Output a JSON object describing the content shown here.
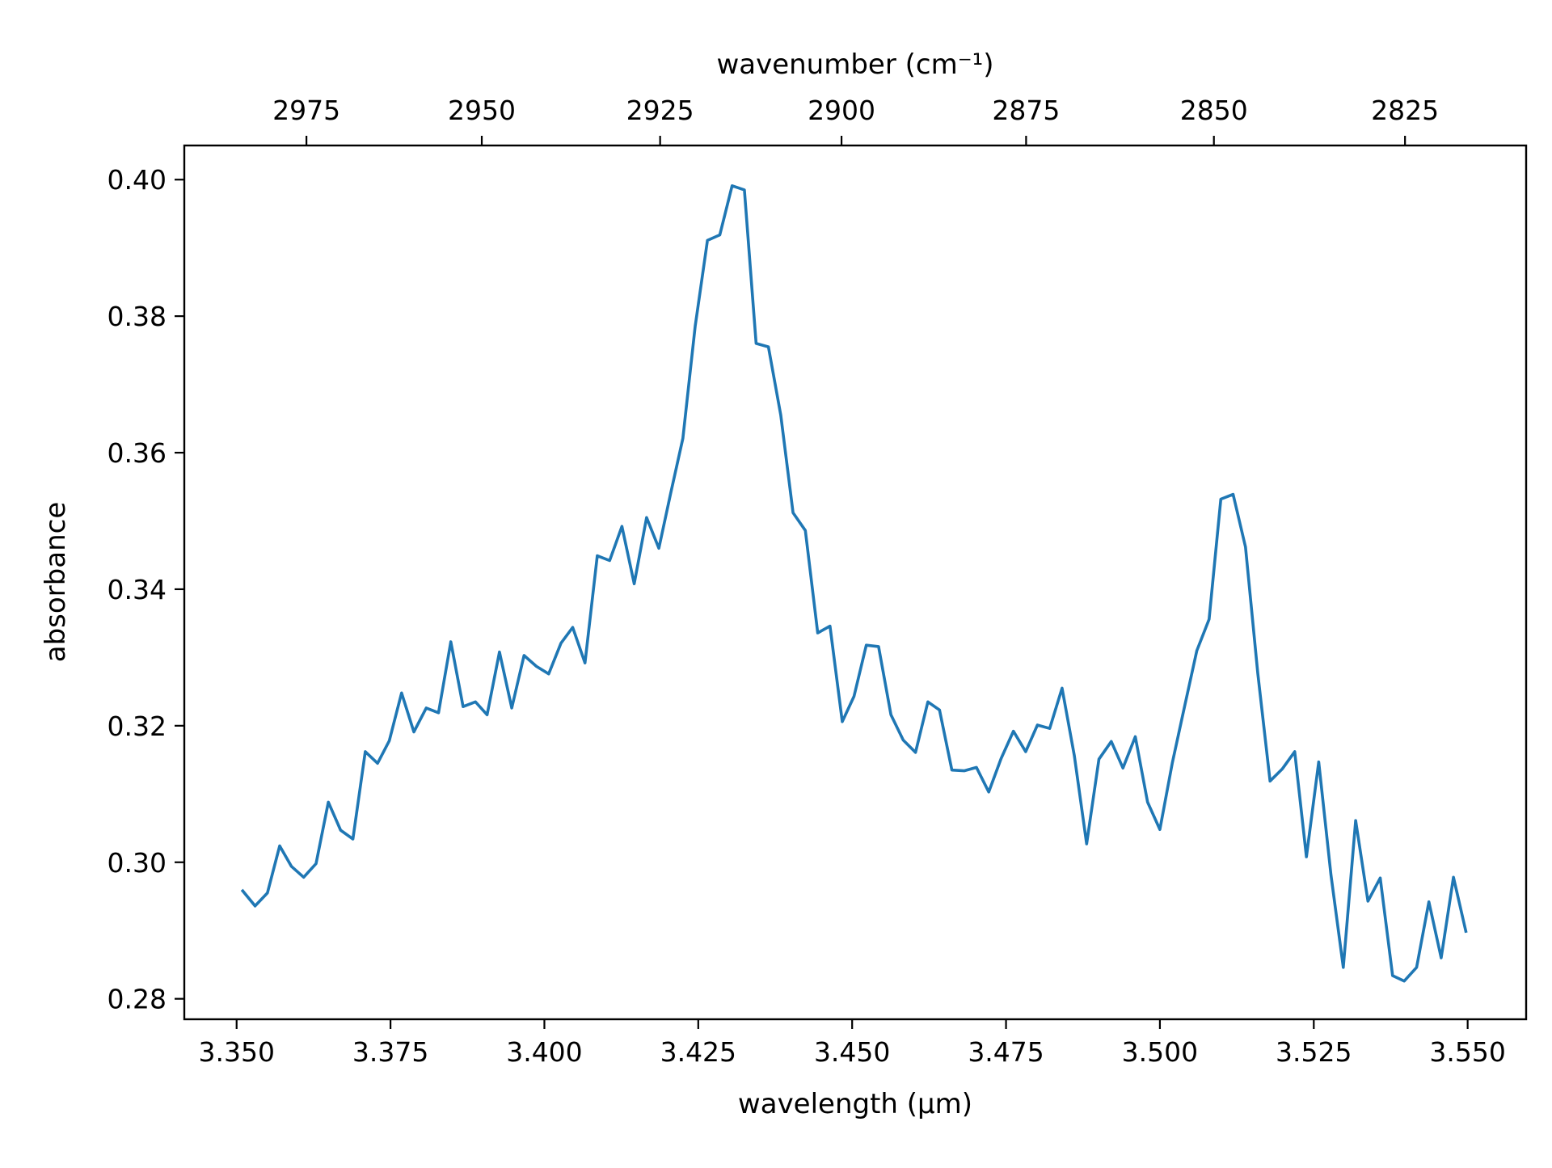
{
  "chart_data": {
    "type": "line",
    "xlabel": "wavelength (µm)",
    "ylabel": "absorbance",
    "secondary_xlabel": "wavenumber (cm⁻¹)",
    "xlim": [
      3.3415,
      3.5595
    ],
    "ylim": [
      0.277,
      0.405
    ],
    "x_ticks": [
      3.35,
      3.375,
      3.4,
      3.425,
      3.45,
      3.475,
      3.5,
      3.525,
      3.55
    ],
    "x_tick_labels": [
      "3.350",
      "3.375",
      "3.400",
      "3.425",
      "3.450",
      "3.475",
      "3.500",
      "3.525",
      "3.550"
    ],
    "y_ticks": [
      0.28,
      0.3,
      0.32,
      0.34,
      0.36,
      0.38,
      0.4
    ],
    "y_tick_labels": [
      "0.28",
      "0.30",
      "0.32",
      "0.34",
      "0.36",
      "0.38",
      "0.40"
    ],
    "secondary_ticks": [
      2975,
      2950,
      2925,
      2900,
      2875,
      2850,
      2825
    ],
    "secondary_tick_labels": [
      "2975",
      "2950",
      "2925",
      "2900",
      "2875",
      "2850",
      "2825"
    ],
    "grid": false,
    "legend": "none",
    "series": [
      {
        "color": "#1f77b4",
        "x": [
          3.351,
          3.353,
          3.355,
          3.357,
          3.3589,
          3.3609,
          3.3629,
          3.3649,
          3.3669,
          3.3689,
          3.3709,
          3.3729,
          3.3748,
          3.3768,
          3.3788,
          3.3808,
          3.3828,
          3.3848,
          3.3868,
          3.3888,
          3.3907,
          3.3927,
          3.3947,
          3.3967,
          3.3987,
          3.4007,
          3.4027,
          3.4046,
          3.4066,
          3.4086,
          3.4106,
          3.4126,
          3.4146,
          3.4166,
          3.4186,
          3.4205,
          3.4225,
          3.4245,
          3.4265,
          3.4285,
          3.4305,
          3.4325,
          3.4344,
          3.4364,
          3.4384,
          3.4404,
          3.4424,
          3.4444,
          3.4464,
          3.4484,
          3.4503,
          3.4523,
          3.4543,
          3.4563,
          3.4583,
          3.4603,
          3.4623,
          3.4642,
          3.4662,
          3.4682,
          3.4702,
          3.4722,
          3.4742,
          3.4762,
          3.4782,
          3.4801,
          3.4821,
          3.4841,
          3.4861,
          3.4881,
          3.4901,
          3.4921,
          3.494,
          3.496,
          3.498,
          3.5,
          3.502,
          3.504,
          3.506,
          3.508,
          3.5099,
          3.5119,
          3.5139,
          3.5159,
          3.5179,
          3.5199,
          3.5219,
          3.5238,
          3.5258,
          3.5278,
          3.5298,
          3.5318,
          3.5338,
          3.5358,
          3.5378,
          3.5397,
          3.5417,
          3.5437,
          3.5457,
          3.5477,
          3.5497
        ],
        "y": [
          0.2958,
          0.2936,
          0.2955,
          0.3024,
          0.2994,
          0.2978,
          0.2998,
          0.3088,
          0.3047,
          0.3034,
          0.3162,
          0.3145,
          0.3178,
          0.3248,
          0.3191,
          0.3226,
          0.3219,
          0.3323,
          0.3228,
          0.3235,
          0.3216,
          0.3308,
          0.3226,
          0.3303,
          0.3287,
          0.3276,
          0.3321,
          0.3344,
          0.3292,
          0.3449,
          0.3442,
          0.3492,
          0.3408,
          0.3505,
          0.346,
          0.354,
          0.3621,
          0.3785,
          0.3911,
          0.3919,
          0.3991,
          0.3985,
          0.376,
          0.3755,
          0.3655,
          0.3512,
          0.3486,
          0.3336,
          0.3346,
          0.3206,
          0.3243,
          0.3318,
          0.3316,
          0.3216,
          0.3179,
          0.3161,
          0.3235,
          0.3223,
          0.3135,
          0.3134,
          0.3139,
          0.3103,
          0.3152,
          0.3192,
          0.3162,
          0.3201,
          0.3196,
          0.3255,
          0.3156,
          0.3027,
          0.3151,
          0.3177,
          0.3138,
          0.3184,
          0.3088,
          0.3048,
          0.3145,
          0.3228,
          0.331,
          0.3356,
          0.3532,
          0.3539,
          0.3462,
          0.3277,
          0.3119,
          0.3137,
          0.3162,
          0.3008,
          0.3147,
          0.2981,
          0.2846,
          0.3061,
          0.2943,
          0.2977,
          0.2834,
          0.2826,
          0.2846,
          0.2942,
          0.286,
          0.2978,
          0.2899
        ]
      }
    ]
  }
}
